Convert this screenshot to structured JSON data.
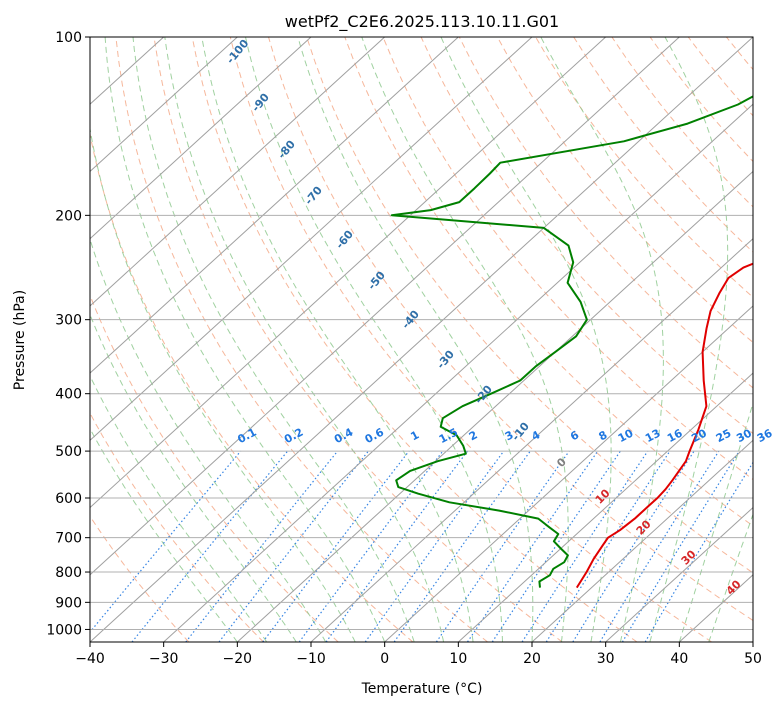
{
  "chart_data": {
    "type": "line",
    "subtype": "skew-t log-p",
    "title": "wetPf2_C2E6.2025.113.10.11.G01",
    "xlabel": "Temperature (°C)",
    "ylabel": "Pressure (hPa)",
    "xlim": [
      -40,
      50
    ],
    "ylim": [
      1050,
      100
    ],
    "y_scale": "log",
    "x_ticks": [
      -40,
      -30,
      -20,
      -10,
      0,
      10,
      20,
      30,
      40,
      50
    ],
    "x_tick_labels": [
      "−40",
      "−30",
      "−20",
      "−10",
      "0",
      "10",
      "20",
      "30",
      "40",
      "50"
    ],
    "y_ticks": [
      1000,
      900,
      800,
      700,
      600,
      500,
      400,
      300,
      200,
      100
    ],
    "y_tick_labels": [
      "1000",
      "900",
      "800",
      "700",
      "600",
      "500",
      "400",
      "300",
      "200",
      "100"
    ],
    "grid": true,
    "colors": {
      "temperature": "#e00000",
      "dewpoint": "#008000",
      "isotherms": "#a0a0a0",
      "dry_adiabats": "#f4a582",
      "moist_adiabats": "#8fc98f",
      "mixing_ratio": "#1f77e0",
      "frame_label_blue": "#2f6fa8",
      "frame_label_red": "#d62728",
      "frame_label_gray": "#808080"
    },
    "series": [
      {
        "role": "temperature",
        "pressure": [
          850,
          800,
          760,
          720,
          700,
          680,
          650,
          620,
          600,
          580,
          560,
          540,
          520,
          500,
          460,
          420,
          380,
          340,
          310,
          290,
          270,
          255,
          245,
          235,
          220,
          205,
          190,
          175,
          160,
          145,
          130,
          120,
          110,
          100
        ],
        "temp": [
          18,
          17,
          16,
          15.2,
          14.8,
          15.3,
          15.6,
          15.6,
          15.6,
          15.4,
          15,
          14.5,
          14,
          13,
          11,
          8.6,
          4.4,
          0,
          -3,
          -5,
          -6.5,
          -7.5,
          -7,
          -5,
          -2,
          1.5,
          5,
          8,
          11.5,
          16,
          20.5,
          25,
          30,
          36
        ]
      },
      {
        "role": "dewpoint",
        "pressure": [
          850,
          830,
          810,
          790,
          770,
          750,
          730,
          710,
          690,
          670,
          650,
          630,
          610,
          590,
          575,
          560,
          540,
          520,
          505,
          490,
          470,
          455,
          440,
          420,
          400,
          380,
          360,
          340,
          320,
          300,
          280,
          260,
          240,
          225,
          210,
          200,
          196,
          190,
          180,
          170,
          163,
          150,
          140,
          130,
          120,
          110,
          100
        ],
        "dewp": [
          13,
          12,
          12.5,
          12,
          12.5,
          12,
          10,
          8,
          7.5,
          5,
          2.5,
          -4,
          -12,
          -17.5,
          -21.2,
          -22.5,
          -22,
          -19.7,
          -17,
          -18.5,
          -21,
          -24.4,
          -25.4,
          -24.5,
          -22.5,
          -20.5,
          -20.5,
          -20,
          -19.5,
          -20.5,
          -24,
          -28.6,
          -30.9,
          -34,
          -40,
          -62.5,
          -58,
          -55.3,
          -55.3,
          -55.4,
          -55.6,
          -42,
          -36,
          -32,
          -29.9,
          -28,
          -25.8
        ]
      }
    ],
    "mixing_ratio_labels": [
      "0.1",
      "0.2",
      "0.4",
      "0.6",
      "1",
      "1.5",
      "2",
      "3",
      "4",
      "6",
      "8",
      "10",
      "13",
      "16",
      "20",
      "25",
      "30",
      "36"
    ],
    "dry_adiabat_labels": [
      "-100",
      "-90",
      "-80",
      "-70",
      "-60",
      "-50",
      "-40",
      "-30",
      "-20",
      "-10"
    ],
    "moist_adiabat_labels": [
      "0",
      "10",
      "20",
      "30",
      "40"
    ]
  }
}
